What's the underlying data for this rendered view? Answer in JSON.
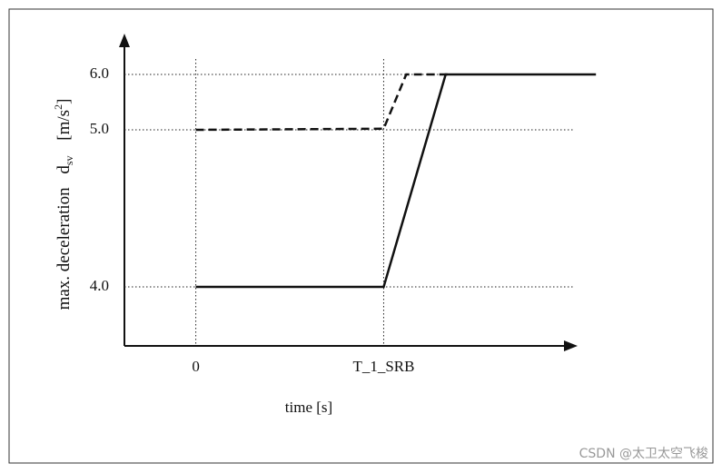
{
  "chart_data": {
    "type": "line",
    "x_label": "time [s]",
    "y_label": "max. deceleration",
    "y_symbol": "d",
    "y_symbol_sub": "sv",
    "y_unit": "[m/s",
    "y_unit_sup": "2",
    "y_unit_end": "]",
    "xlim": [
      -0.38,
      2.1
    ],
    "xticks": [
      0,
      {
        "value": 1,
        "label": "T_1_SRB"
      }
    ],
    "ylim": [
      3.62,
      6.69
    ],
    "yticks": [
      {
        "value": 4,
        "label": "4.0"
      },
      {
        "value": 5,
        "label": "5.0"
      },
      {
        "value": 6,
        "label": "6.0"
      }
    ],
    "grid": true,
    "series": [
      {
        "color": "#111111",
        "style": "solid",
        "x": [
          0,
          1,
          1.33,
          2.13
        ],
        "values": [
          4,
          4,
          6,
          6
        ]
      },
      {
        "color": "#111111",
        "style": "dashed",
        "x": [
          0,
          1,
          1.12,
          1.34
        ],
        "values": [
          5,
          5.02,
          6,
          6
        ]
      }
    ],
    "watermark": "CSDN @太卫太空飞梭"
  }
}
